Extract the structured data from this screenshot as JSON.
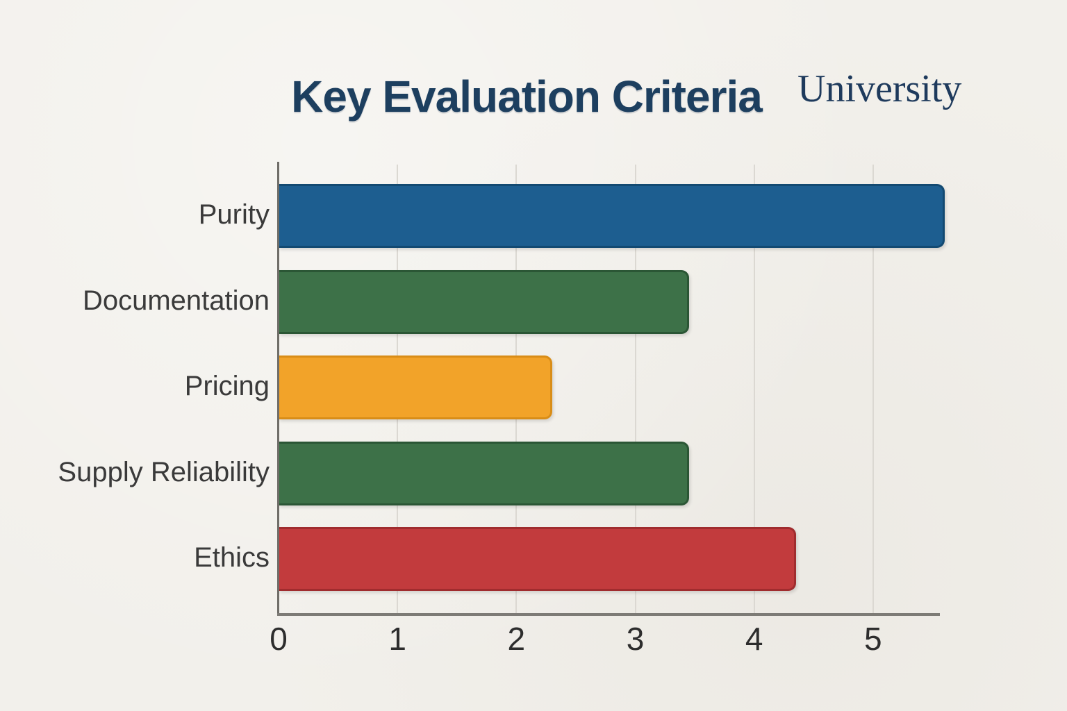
{
  "header": {
    "title": "Key Evaluation Criteria",
    "brand": "University"
  },
  "colors": {
    "background": "#f2f0eb",
    "title_text": "#1d3f5f",
    "brand_text": "#1e3a5c",
    "axis_line": "#7d7b76",
    "gridline": "#dbd8d2",
    "tick_label": "#2d2d2d",
    "category_label": "#3a3a3a"
  },
  "chart_data": {
    "type": "bar",
    "orientation": "horizontal",
    "title": "Key Evaluation Criteria",
    "categories": [
      "Purity",
      "Documentation",
      "Pricing",
      "Supply Reliability",
      "Ethics"
    ],
    "values": [
      5.6,
      3.45,
      2.3,
      3.45,
      4.35
    ],
    "bar_colors": [
      "#1d5e90",
      "#3d7148",
      "#f2a329",
      "#3d7148",
      "#c23b3d"
    ],
    "bar_border_colors": [
      "#134a72",
      "#2b5635",
      "#d98d17",
      "#2b5635",
      "#a02c2e"
    ],
    "x_ticks": [
      0,
      1,
      2,
      3,
      4,
      5
    ],
    "xlim": [
      0,
      5.55
    ],
    "grid": true,
    "legend_position": "none",
    "xlabel": "",
    "ylabel": ""
  }
}
